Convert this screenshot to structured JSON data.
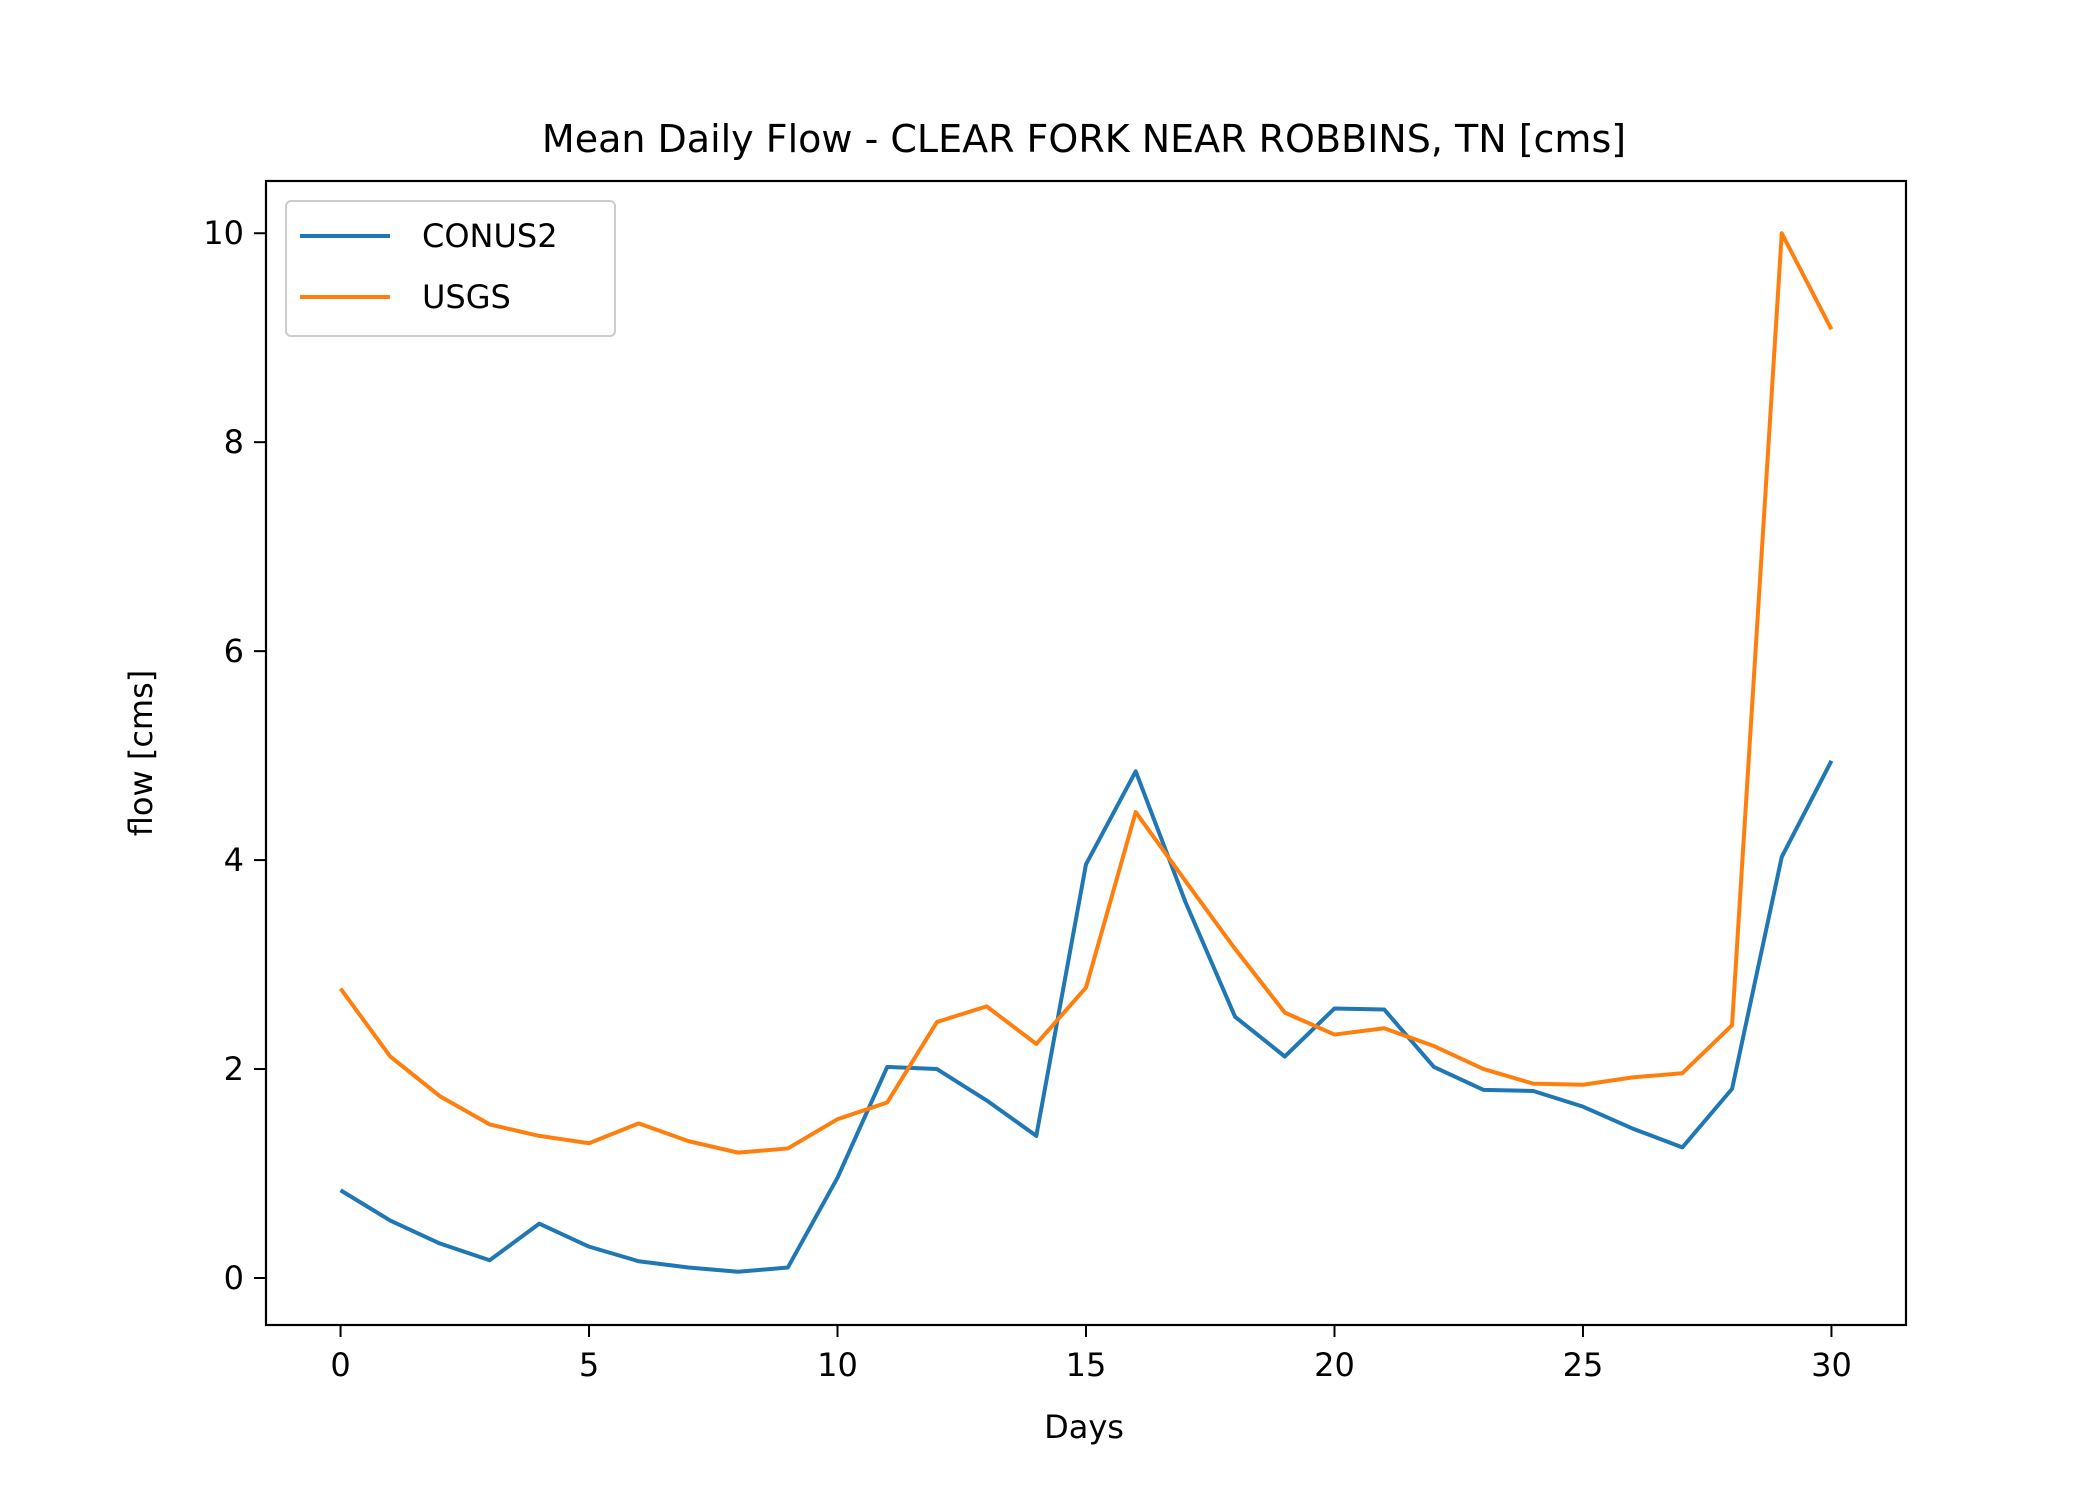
{
  "chart_data": {
    "type": "line",
    "title": "Mean Daily Flow - CLEAR FORK NEAR ROBBINS, TN [cms]",
    "xlabel": "Days",
    "ylabel": "flow [cms]",
    "xlim": [
      -1.5,
      31.5
    ],
    "ylim": [
      -0.45,
      10.5
    ],
    "xticks": [
      0,
      5,
      10,
      15,
      20,
      25,
      30
    ],
    "yticks": [
      0,
      2,
      4,
      6,
      8,
      10
    ],
    "grid": false,
    "legend": "upper left",
    "x": [
      0,
      1,
      2,
      3,
      4,
      5,
      6,
      7,
      8,
      9,
      10,
      11,
      12,
      13,
      14,
      15,
      16,
      17,
      18,
      19,
      20,
      21,
      22,
      23,
      24,
      25,
      26,
      27,
      28,
      29,
      30
    ],
    "series": [
      {
        "name": "CONUS2",
        "color": "#1f77b4",
        "values": [
          0.84,
          0.55,
          0.33,
          0.17,
          0.52,
          0.3,
          0.16,
          0.1,
          0.06,
          0.1,
          0.96,
          2.02,
          2.0,
          1.7,
          1.36,
          3.96,
          4.85,
          3.6,
          2.5,
          2.12,
          2.58,
          2.57,
          2.02,
          1.8,
          1.79,
          1.64,
          1.43,
          1.25,
          1.81,
          4.03,
          4.95
        ]
      },
      {
        "name": "USGS",
        "color": "#ff7f0e",
        "values": [
          2.77,
          2.12,
          1.74,
          1.47,
          1.36,
          1.29,
          1.48,
          1.31,
          1.2,
          1.24,
          1.52,
          1.68,
          2.45,
          2.6,
          2.24,
          2.78,
          4.46,
          3.8,
          3.15,
          2.54,
          2.33,
          2.39,
          2.22,
          2.0,
          1.86,
          1.85,
          1.92,
          1.96,
          2.42,
          10.0,
          9.08
        ]
      }
    ]
  }
}
